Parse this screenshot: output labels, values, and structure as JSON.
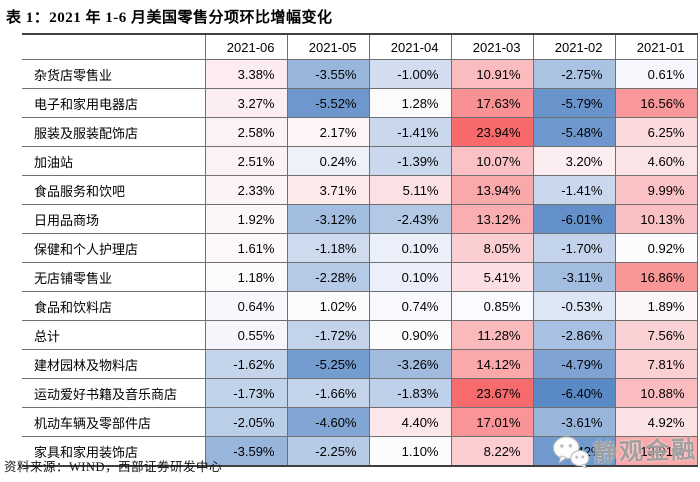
{
  "title": "表 1：2021 年 1-6 月美国零售分项环比增幅变化",
  "source_note": "资料来源：WIND，西部证券研发中心",
  "watermark": {
    "text": "静观金融",
    "icon": "wechat-icon"
  },
  "chart_data": {
    "type": "table",
    "title": "2021 年 1-6 月美国零售分项环比增幅变化",
    "value_suffix": "%",
    "columns": [
      "2021-06",
      "2021-05",
      "2021-04",
      "2021-03",
      "2021-02",
      "2021-01"
    ],
    "rows": [
      {
        "label": "杂货店零售业",
        "values": [
          3.38,
          -3.55,
          -1.0,
          10.91,
          -2.75,
          0.61
        ]
      },
      {
        "label": "电子和家用电器店",
        "values": [
          3.27,
          -5.52,
          1.28,
          17.63,
          -5.79,
          16.56
        ]
      },
      {
        "label": "服装及服装配饰店",
        "values": [
          2.58,
          2.17,
          -1.41,
          23.94,
          -5.48,
          6.25
        ]
      },
      {
        "label": "加油站",
        "values": [
          2.51,
          0.24,
          -1.39,
          10.07,
          3.2,
          4.6
        ]
      },
      {
        "label": "食品服务和饮吧",
        "values": [
          2.33,
          3.71,
          5.11,
          13.94,
          -1.41,
          9.99
        ]
      },
      {
        "label": "日用品商场",
        "values": [
          1.92,
          -3.12,
          -2.43,
          13.12,
          -6.01,
          10.13
        ]
      },
      {
        "label": "保健和个人护理店",
        "values": [
          1.61,
          -1.18,
          0.1,
          8.05,
          -1.7,
          0.92
        ]
      },
      {
        "label": "无店铺零售业",
        "values": [
          1.18,
          -2.28,
          0.1,
          5.41,
          -3.11,
          16.86
        ]
      },
      {
        "label": "食品和饮料店",
        "values": [
          0.64,
          1.02,
          0.74,
          0.85,
          -0.53,
          1.89
        ]
      },
      {
        "label": "总计",
        "values": [
          0.55,
          -1.72,
          0.9,
          11.28,
          -2.86,
          7.56
        ]
      },
      {
        "label": "建材园林及物料店",
        "values": [
          -1.62,
          -5.25,
          -3.26,
          14.12,
          -4.79,
          7.81
        ]
      },
      {
        "label": "运动爱好书籍及音乐商店",
        "values": [
          -1.73,
          -1.66,
          -1.83,
          23.67,
          -6.4,
          10.88
        ]
      },
      {
        "label": "机动车辆及零部件店",
        "values": [
          -2.05,
          -4.6,
          4.4,
          17.01,
          -3.61,
          4.92
        ]
      },
      {
        "label": "家具和家用装饰店",
        "values": [
          -3.59,
          -2.25,
          1.1,
          8.22,
          -5.42,
          13.91
        ]
      }
    ],
    "color_scale": {
      "type": "3-color",
      "min": -6.4,
      "mid": 0.91,
      "max": 23.94,
      "min_color": "#5A8AC6",
      "mid_color": "#FCFCFF",
      "max_color": "#F8696B"
    },
    "layout": {
      "grid": true,
      "header_position": "top",
      "label_column": "left"
    }
  }
}
